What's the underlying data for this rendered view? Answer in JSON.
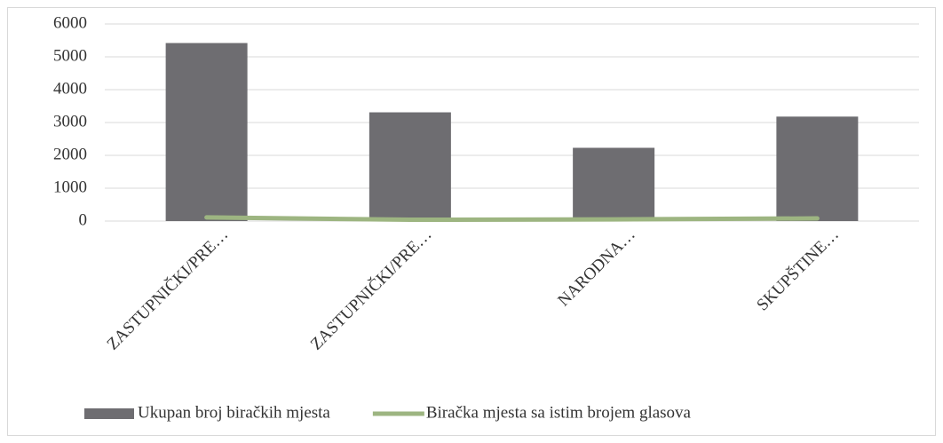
{
  "chart_data": {
    "type": "combo",
    "categories": [
      "ZASTUPNIČKI/PRE…",
      "ZASTUPNIČKI/PRE…",
      "NARODNA…",
      "SKUPŠTINE…"
    ],
    "series": [
      {
        "name": "Ukupan broj biračkih mjesta",
        "type": "bar",
        "color": "#6e6d71",
        "values": [
          5420,
          3310,
          2230,
          3180
        ]
      },
      {
        "name": "Biračka mjesta sa istim brojem glasova",
        "type": "line",
        "color": "#9db581",
        "values": [
          110,
          40,
          50,
          80
        ]
      }
    ],
    "ylim": [
      0,
      6000
    ],
    "yticks": [
      0,
      1000,
      2000,
      3000,
      4000,
      5000,
      6000
    ],
    "grid": true,
    "legend": "bottom"
  }
}
